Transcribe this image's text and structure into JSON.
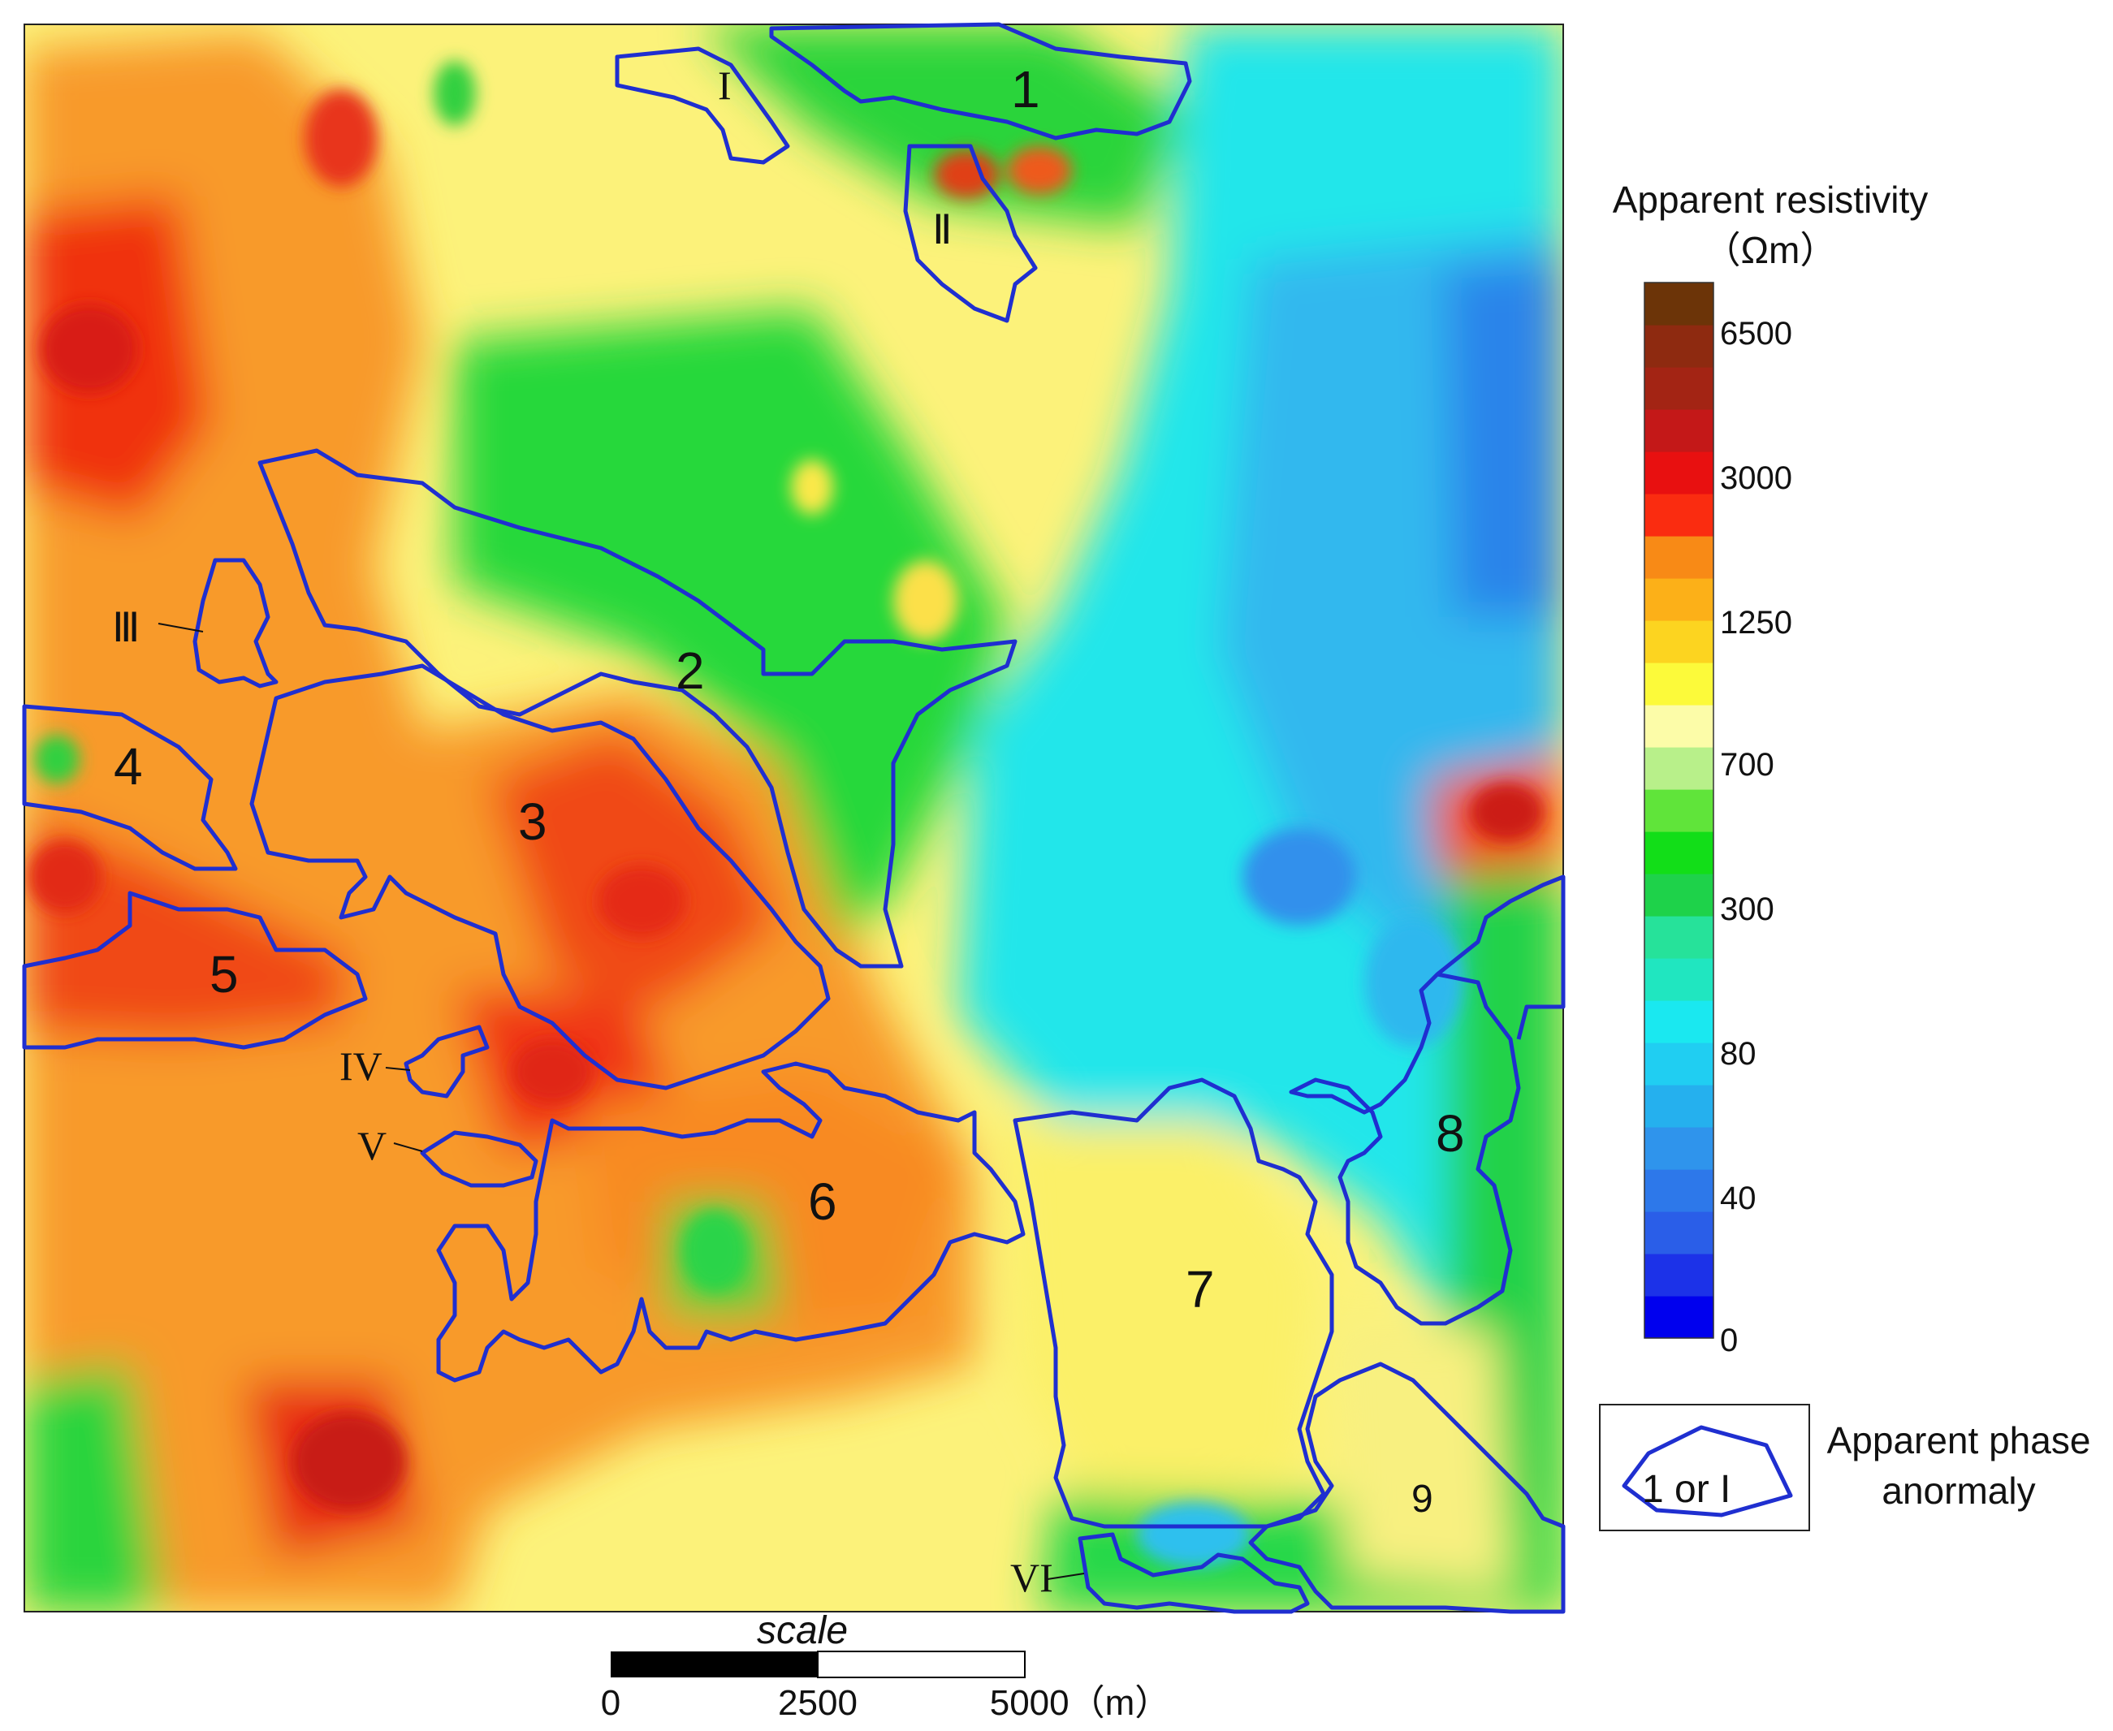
{
  "legend": {
    "title_line1": "Apparent resistivity",
    "title_line2": "（Ωm）",
    "ticks": [
      {
        "label": "6500",
        "color": "#a0311c"
      },
      {
        "label": "3000",
        "color": "#f22a10"
      },
      {
        "label": "1250",
        "color": "#fcf326"
      },
      {
        "label": "700",
        "color": "#14de1c"
      },
      {
        "label": "300",
        "color": "#26e8c4"
      },
      {
        "label": "80",
        "color": "#28b8ee"
      },
      {
        "label": "40",
        "color": "#2a80ee"
      },
      {
        "label": "0",
        "color": "#1010f4"
      }
    ],
    "color_bands": [
      "#0000ee",
      "#1c32e8",
      "#2a5ee8",
      "#2d78ea",
      "#2f94ec",
      "#25b0ee",
      "#20cef2",
      "#1ae8f0",
      "#20e6c0",
      "#26e29a",
      "#1ed24a",
      "#12de18",
      "#60e43a",
      "#b8f08a",
      "#fcfca8",
      "#fcfa3a",
      "#fcd420",
      "#fcb018",
      "#f88a16",
      "#fa2c10",
      "#e81010",
      "#c41818",
      "#a32414",
      "#8e2a10",
      "#6c3408"
    ]
  },
  "anomaly_legend": {
    "sample_label": "1 or  I",
    "caption_line1": "Apparent phase",
    "caption_line2": "anormaly"
  },
  "scale": {
    "title": "scale",
    "labels": [
      "0",
      "2500",
      "5000（m）"
    ]
  },
  "map": {
    "zones": [
      {
        "id": "1",
        "kind": "number"
      },
      {
        "id": "2",
        "kind": "number"
      },
      {
        "id": "3",
        "kind": "number"
      },
      {
        "id": "4",
        "kind": "number"
      },
      {
        "id": "5",
        "kind": "number"
      },
      {
        "id": "6",
        "kind": "number"
      },
      {
        "id": "7",
        "kind": "number"
      },
      {
        "id": "8",
        "kind": "number"
      },
      {
        "id": "9",
        "kind": "number"
      },
      {
        "id": "I",
        "kind": "roman"
      },
      {
        "id": "Ⅱ",
        "kind": "roman"
      },
      {
        "id": "Ⅲ",
        "kind": "roman"
      },
      {
        "id": "IV",
        "kind": "roman"
      },
      {
        "id": "V",
        "kind": "roman"
      },
      {
        "id": "VI",
        "kind": "roman"
      }
    ]
  }
}
